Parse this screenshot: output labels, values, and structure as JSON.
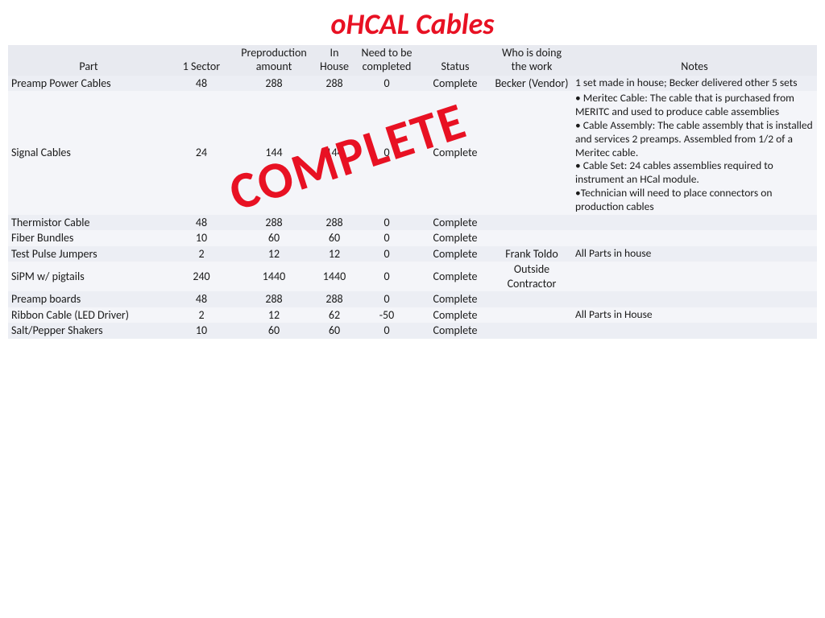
{
  "title": "oHCAL Cables",
  "stamp": "COMPLETE",
  "columns": [
    "Part",
    "1 Sector",
    "Preproduction amount",
    "In House",
    "Need to be completed",
    "Status",
    "Who is doing the work",
    "Notes"
  ],
  "rows": [
    {
      "part": "Preamp Power Cables",
      "sector": "48",
      "pre": "288",
      "inh": "288",
      "need": "0",
      "status": "Complete",
      "who": "Becker (Vendor)",
      "notes": "1 set made in house; Becker delivered other 5 sets"
    },
    {
      "part": "Signal Cables",
      "sector": "24",
      "pre": "144",
      "inh": "144",
      "need": "0",
      "status": "Complete",
      "who": "",
      "notes": "• Meritec Cable: The cable that is purchased from MERITC and used to produce cable assemblies\n• Cable Assembly: The cable assembly that is installed and services 2 preamps. Assembled from 1/2 of a Meritec cable.\n• Cable Set: 24 cables assemblies required to instrument an HCal module.\n•Technician will need to place connectors on production cables"
    },
    {
      "part": "Thermistor Cable",
      "sector": "48",
      "pre": "288",
      "inh": "288",
      "need": "0",
      "status": "Complete",
      "who": "",
      "notes": ""
    },
    {
      "part": "Fiber Bundles",
      "sector": "10",
      "pre": "60",
      "inh": "60",
      "need": "0",
      "status": "Complete",
      "who": "",
      "notes": ""
    },
    {
      "part": "Test Pulse Jumpers",
      "sector": "2",
      "pre": "12",
      "inh": "12",
      "need": "0",
      "status": "Complete",
      "who": "Frank Toldo",
      "notes": "All Parts in house"
    },
    {
      "part": "SiPM w/ pigtails",
      "sector": "240",
      "pre": "1440",
      "inh": "1440",
      "need": "0",
      "status": "Complete",
      "who": "Outside Contractor",
      "notes": ""
    },
    {
      "part": "Preamp boards",
      "sector": "48",
      "pre": "288",
      "inh": "288",
      "need": "0",
      "status": "Complete",
      "who": "",
      "notes": ""
    },
    {
      "part": "Ribbon Cable (LED Driver)",
      "sector": "2",
      "pre": "12",
      "inh": "62",
      "need": "-50",
      "status": "Complete",
      "who": "",
      "notes": "All Parts in House"
    },
    {
      "part": "Salt/Pepper Shakers",
      "sector": "10",
      "pre": "60",
      "inh": "60",
      "need": "0",
      "status": "Complete",
      "who": "",
      "notes": ""
    }
  ],
  "colors": {
    "title": "#e81123",
    "header_bg": "#e8eaf0",
    "row_odd": "#eceef4",
    "row_even": "#f4f5f9",
    "text": "#1a1a1a"
  },
  "fontsize": {
    "title": 36,
    "body": 14
  }
}
